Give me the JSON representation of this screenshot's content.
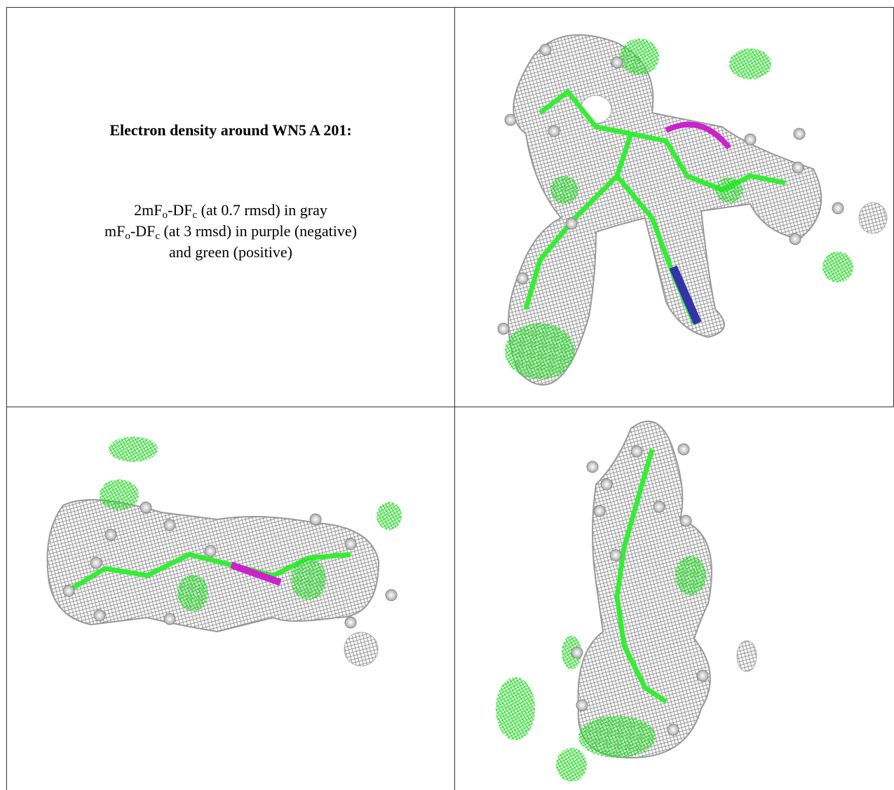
{
  "figure": {
    "title": "Electron density around WN5 A 201:",
    "caption": [
      [
        "2mF",
        "o",
        "-DF",
        "c",
        " (at 0.7 rmsd) in gray"
      ],
      [
        "mF",
        "o",
        "-DF",
        "c",
        " (at 3 rmsd) in purple (negative)"
      ],
      [
        "and green (positive)"
      ]
    ]
  }
}
